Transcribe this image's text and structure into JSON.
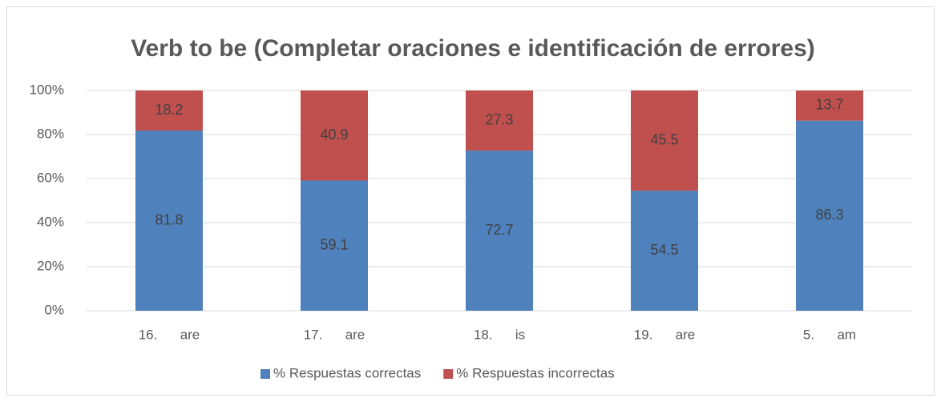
{
  "chart_data": {
    "type": "stacked_bar",
    "title": "Verb to be (Completar oraciones e identificación de errores)",
    "categories": [
      "16.      are",
      "17.      are",
      "18.      is",
      "19.      are",
      "5.      am"
    ],
    "series": [
      {
        "name": "% Respuestas correctas",
        "color": "#4f81bd",
        "values": [
          81.8,
          59.1,
          72.7,
          54.5,
          86.3
        ]
      },
      {
        "name": "% Respuestas incorrectas",
        "color": "#c0504d",
        "values": [
          18.2,
          40.9,
          27.3,
          45.5,
          13.7
        ]
      }
    ],
    "ylim": [
      0,
      100
    ],
    "yticks": [
      {
        "value": 0,
        "label": "0%"
      },
      {
        "value": 20,
        "label": "20%"
      },
      {
        "value": 40,
        "label": "40%"
      },
      {
        "value": 60,
        "label": "60%"
      },
      {
        "value": 80,
        "label": "80%"
      },
      {
        "value": 100,
        "label": "100%"
      }
    ],
    "grid": true,
    "legend": "bottom"
  }
}
